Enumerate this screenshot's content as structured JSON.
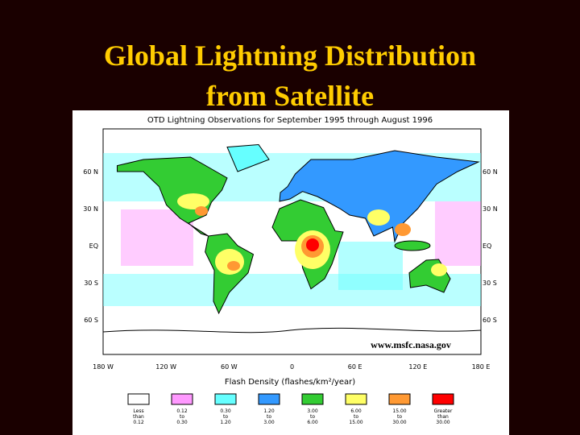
{
  "header": {
    "title_lines": [
      "Global Lightning Distribution",
      "from Satellite"
    ]
  },
  "map": {
    "title": "OTD Lightning Observations for September 1995 through August 1996",
    "latitude_labels": [
      "60 N",
      "30 N",
      "EQ",
      "30 S",
      "60 S"
    ],
    "longitude_labels": [
      "180 W",
      "120 W",
      "60 W",
      "0",
      "60 E",
      "120 E",
      "180 E"
    ],
    "credit": "www.msfc.nasa.gov"
  },
  "legend": {
    "title": "Flash Density (flashes/km²/year)",
    "items": [
      {
        "lines": [
          "Less",
          "than",
          "0.12"
        ],
        "color": "#ffffff"
      },
      {
        "lines": [
          "0.12",
          "to",
          "0.30"
        ],
        "color": "#ff99ff"
      },
      {
        "lines": [
          "0.30",
          "to",
          "1.20"
        ],
        "color": "#66ffff"
      },
      {
        "lines": [
          "1.20",
          "to",
          "3.00"
        ],
        "color": "#3399ff"
      },
      {
        "lines": [
          "3.00",
          "to",
          "6.00"
        ],
        "color": "#33cc33"
      },
      {
        "lines": [
          "6.00",
          "to",
          "15.00"
        ],
        "color": "#ffff66"
      },
      {
        "lines": [
          "15.00",
          "to",
          "30.00"
        ],
        "color": "#ff9933"
      },
      {
        "lines": [
          "Greater",
          "than",
          "30.00"
        ],
        "color": "#ff0000"
      }
    ]
  }
}
